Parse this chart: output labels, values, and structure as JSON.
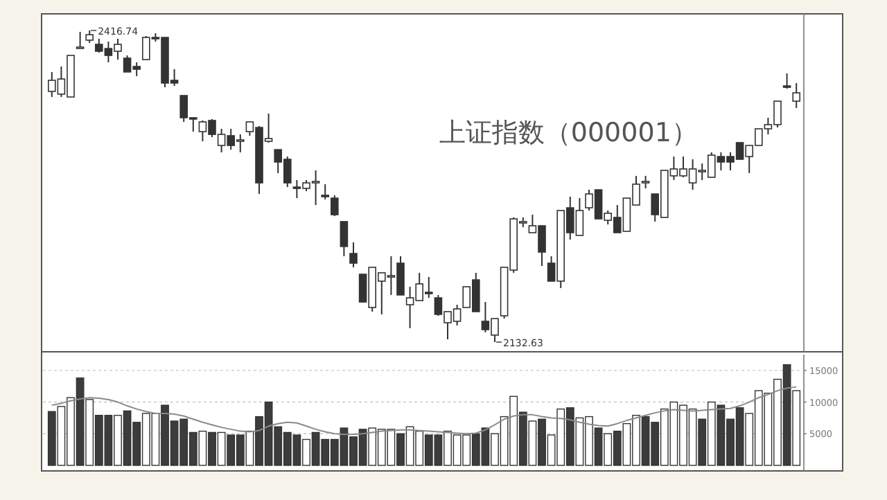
{
  "chart_data": [
    {
      "type": "candlestick",
      "annotations": [
        "上证指数（000001）",
        "2416.74",
        "2132.63"
      ],
      "categories": [
        null,
        null,
        null,
        null,
        null,
        null,
        null,
        null,
        null,
        null,
        null,
        null,
        null,
        null,
        null,
        null,
        null,
        null,
        null,
        null,
        null,
        null,
        null,
        null,
        null,
        null,
        null,
        null,
        null,
        null,
        null,
        null,
        null,
        null,
        null,
        null,
        null,
        null,
        null,
        null,
        null,
        null,
        null,
        null,
        null,
        null,
        null,
        null,
        null,
        null,
        null,
        null,
        null,
        null,
        null,
        null,
        null,
        null,
        null,
        null,
        null,
        null,
        null,
        null,
        null,
        null,
        null,
        null,
        null,
        null,
        null,
        null,
        null,
        null,
        null,
        null,
        null,
        null,
        null,
        null
      ],
      "ohlc": [
        [
          2361.2,
          2378.9,
          2356.1,
          2371.3
        ],
        [
          2358.7,
          2383.9,
          2356.1,
          2372.5
        ],
        [
          2356.1,
          2394.0,
          2356.1,
          2394.0
        ],
        [
          2400.3,
          2415.5,
          2400.3,
          2401.6
        ],
        [
          2407.9,
          2416.74,
          2405.4,
          2412.9
        ],
        [
          2404.1,
          2409.2,
          2396.5,
          2397.8
        ],
        [
          2400.3,
          2406.6,
          2387.7,
          2394.0
        ],
        [
          2397.8,
          2409.2,
          2390.2,
          2404.1
        ],
        [
          2391.5,
          2394.0,
          2378.9,
          2378.9
        ],
        [
          2383.9,
          2387.7,
          2375.1,
          2381.4
        ],
        [
          2390.2,
          2411.7,
          2390.2,
          2410.4
        ],
        [
          2410.4,
          2414.2,
          2406.6,
          2409.2
        ],
        [
          2410.4,
          2410.4,
          2365.0,
          2368.8
        ],
        [
          2371.3,
          2381.4,
          2366.2,
          2368.8
        ],
        [
          2357.4,
          2357.4,
          2333.4,
          2337.2
        ],
        [
          2337.2,
          2337.2,
          2324.5,
          2335.9
        ],
        [
          2324.5,
          2334.7,
          2315.7,
          2333.4
        ],
        [
          2334.7,
          2335.9,
          2319.5,
          2322.0
        ],
        [
          2311.9,
          2327.1,
          2305.6,
          2322.0
        ],
        [
          2320.8,
          2327.1,
          2308.1,
          2311.9
        ],
        [
          2315.7,
          2322.0,
          2305.6,
          2317.0
        ],
        [
          2324.5,
          2333.4,
          2320.8,
          2333.4
        ],
        [
          2328.3,
          2329.6,
          2267.7,
          2277.8
        ],
        [
          2315.7,
          2341.0,
          2314.5,
          2318.2
        ],
        [
          2308.1,
          2308.1,
          2286.7,
          2296.8
        ],
        [
          2299.3,
          2301.8,
          2274.0,
          2277.8
        ],
        [
          2274.0,
          2280.4,
          2263.9,
          2272.8
        ],
        [
          2272.8,
          2280.4,
          2270.3,
          2277.8
        ],
        [
          2277.8,
          2289.2,
          2257.6,
          2279.1
        ],
        [
          2266.5,
          2276.6,
          2262.7,
          2265.2
        ],
        [
          2263.9,
          2266.5,
          2247.5,
          2248.8
        ],
        [
          2242.5,
          2242.5,
          2210.9,
          2219.8
        ],
        [
          2213.4,
          2223.5,
          2200.8,
          2204.6
        ],
        [
          2194.5,
          2194.5,
          2169.2,
          2169.2
        ],
        [
          2164.2,
          2200.8,
          2160.4,
          2200.8
        ],
        [
          2188.2,
          2195.8,
          2157.9,
          2195.8
        ],
        [
          2192.0,
          2210.9,
          2175.6,
          2193.2
        ],
        [
          2204.6,
          2210.9,
          2175.6,
          2175.6
        ],
        [
          2166.7,
          2183.1,
          2145.3,
          2173.0
        ],
        [
          2170.5,
          2195.8,
          2170.5,
          2185.7
        ],
        [
          2178.1,
          2192.0,
          2173.0,
          2176.8
        ],
        [
          2173.0,
          2175.6,
          2156.6,
          2157.9
        ],
        [
          2150.3,
          2160.4,
          2135.2,
          2160.4
        ],
        [
          2151.6,
          2166.7,
          2147.8,
          2162.9
        ],
        [
          2164.2,
          2183.1,
          2164.2,
          2183.1
        ],
        [
          2189.4,
          2195.8,
          2160.4,
          2160.4
        ],
        [
          2151.6,
          2169.2,
          2141.5,
          2144.0
        ],
        [
          2139.0,
          2154.1,
          2132.63,
          2154.1
        ],
        [
          2156.6,
          2200.8,
          2154.1,
          2200.8
        ],
        [
          2198.3,
          2246.3,
          2195.8,
          2245.0
        ],
        [
          2241.2,
          2246.3,
          2237.4,
          2242.5
        ],
        [
          2232.4,
          2248.8,
          2232.4,
          2238.7
        ],
        [
          2238.7,
          2238.7,
          2202.1,
          2214.7
        ],
        [
          2204.6,
          2210.9,
          2188.2,
          2188.2
        ],
        [
          2188.2,
          2252.6,
          2181.9,
          2252.6
        ],
        [
          2255.1,
          2265.2,
          2226.1,
          2232.4
        ],
        [
          2229.9,
          2263.9,
          2229.9,
          2252.6
        ],
        [
          2255.1,
          2271.5,
          2252.6,
          2267.7
        ],
        [
          2271.5,
          2271.5,
          2245.0,
          2245.0
        ],
        [
          2243.7,
          2252.6,
          2239.9,
          2250.1
        ],
        [
          2246.3,
          2257.6,
          2232.4,
          2232.4
        ],
        [
          2233.6,
          2263.9,
          2233.6,
          2263.9
        ],
        [
          2257.6,
          2284.2,
          2257.6,
          2276.6
        ],
        [
          2277.8,
          2284.2,
          2272.8,
          2279.1
        ],
        [
          2267.7,
          2267.7,
          2242.5,
          2248.8
        ],
        [
          2246.3,
          2289.2,
          2246.3,
          2289.2
        ],
        [
          2284.2,
          2301.8,
          2280.4,
          2290.5
        ],
        [
          2284.2,
          2301.8,
          2282.9,
          2290.5
        ],
        [
          2277.8,
          2299.3,
          2271.5,
          2290.5
        ],
        [
          2287.9,
          2295.5,
          2280.4,
          2289.2
        ],
        [
          2282.9,
          2305.6,
          2282.9,
          2303.1
        ],
        [
          2301.8,
          2305.6,
          2289.2,
          2296.8
        ],
        [
          2301.8,
          2305.6,
          2289.2,
          2296.8
        ],
        [
          2314.5,
          2314.5,
          2299.3,
          2299.3
        ],
        [
          2301.8,
          2311.9,
          2286.7,
          2311.9
        ],
        [
          2311.9,
          2327.1,
          2311.9,
          2327.1
        ],
        [
          2327.1,
          2337.2,
          2322.0,
          2330.9
        ],
        [
          2330.9,
          2352.3,
          2328.3,
          2352.3
        ],
        [
          2366.2,
          2377.6,
          2363.7,
          2365.0
        ],
        [
          2352.3,
          2368.8,
          2346.0,
          2359.9
        ]
      ]
    },
    {
      "type": "bar",
      "ylim": [
        0,
        17500
      ],
      "yticks": [
        5000,
        10000,
        15000
      ],
      "grid": "y",
      "categories": [
        null,
        null,
        null,
        null,
        null,
        null,
        null,
        null,
        null,
        null,
        null,
        null,
        null,
        null,
        null,
        null,
        null,
        null,
        null,
        null,
        null,
        null,
        null,
        null,
        null,
        null,
        null,
        null,
        null,
        null,
        null,
        null,
        null,
        null,
        null,
        null,
        null,
        null,
        null,
        null,
        null,
        null,
        null,
        null,
        null,
        null,
        null,
        null,
        null,
        null,
        null,
        null,
        null,
        null,
        null,
        null,
        null,
        null,
        null,
        null,
        null,
        null,
        null,
        null,
        null,
        null,
        null,
        null,
        null,
        null,
        null,
        null,
        null,
        null,
        null,
        null,
        null,
        null,
        null,
        null
      ],
      "series": [
        {
          "type": "bar",
          "values": [
            8500,
            9300,
            10700,
            13800,
            10400,
            7900,
            7900,
            7900,
            8600,
            6800,
            8200,
            8200,
            9500,
            7000,
            7300,
            5200,
            5400,
            5200,
            5200,
            4800,
            4800,
            5400,
            7700,
            10000,
            6100,
            5200,
            4800,
            4100,
            5200,
            4100,
            4100,
            5900,
            4500,
            5700,
            5900,
            5700,
            5700,
            5000,
            6100,
            5400,
            4800,
            4800,
            5400,
            4800,
            4800,
            5000,
            5900,
            5000,
            7700,
            10900,
            8400,
            7000,
            7300,
            4800,
            8900,
            9100,
            7500,
            7700,
            5900,
            5000,
            5400,
            6600,
            7900,
            7700,
            6800,
            8900,
            10000,
            9500,
            8900,
            7300,
            10000,
            9500,
            7300,
            9100,
            8200,
            11800,
            11400,
            13600,
            15900,
            11800
          ],
          "colors": [
            "#3c3c3c",
            "#ffffff",
            "#ffffff",
            "#3c3c3c",
            "#ffffff",
            "#3c3c3c",
            "#3c3c3c",
            "#ffffff",
            "#3c3c3c",
            "#3c3c3c",
            "#ffffff",
            "#ffffff",
            "#3c3c3c",
            "#3c3c3c",
            "#3c3c3c",
            "#3c3c3c",
            "#ffffff",
            "#3c3c3c",
            "#ffffff",
            "#3c3c3c",
            "#3c3c3c",
            "#ffffff",
            "#3c3c3c",
            "#3c3c3c",
            "#3c3c3c",
            "#3c3c3c",
            "#3c3c3c",
            "#ffffff",
            "#3c3c3c",
            "#3c3c3c",
            "#3c3c3c",
            "#3c3c3c",
            "#3c3c3c",
            "#3c3c3c",
            "#ffffff",
            "#ffffff",
            "#ffffff",
            "#3c3c3c",
            "#ffffff",
            "#ffffff",
            "#3c3c3c",
            "#3c3c3c",
            "#ffffff",
            "#ffffff",
            "#ffffff",
            "#3c3c3c",
            "#3c3c3c",
            "#ffffff",
            "#ffffff",
            "#ffffff",
            "#3c3c3c",
            "#ffffff",
            "#3c3c3c",
            "#ffffff",
            "#ffffff",
            "#3c3c3c",
            "#ffffff",
            "#ffffff",
            "#3c3c3c",
            "#ffffff",
            "#3c3c3c",
            "#ffffff",
            "#ffffff",
            "#3c3c3c",
            "#3c3c3c",
            "#ffffff",
            "#ffffff",
            "#ffffff",
            "#ffffff",
            "#3c3c3c",
            "#ffffff",
            "#3c3c3c",
            "#3c3c3c",
            "#3c3c3c",
            "#ffffff",
            "#ffffff",
            "#ffffff",
            "#ffffff",
            "#3c3c3c",
            "#ffffff"
          ]
        },
        {
          "type": "line",
          "color": "#8a8a8a",
          "values": [
            9500,
            9800,
            10200,
            10500,
            10700,
            10600,
            10400,
            10000,
            9400,
            8900,
            8500,
            8200,
            8200,
            8100,
            7800,
            7300,
            6800,
            6400,
            6000,
            5700,
            5400,
            5300,
            5500,
            6200,
            6600,
            6800,
            6700,
            6200,
            5700,
            5300,
            5000,
            4900,
            4900,
            5000,
            5200,
            5400,
            5500,
            5600,
            5600,
            5500,
            5400,
            5300,
            5200,
            5100,
            5000,
            5100,
            5600,
            6400,
            7300,
            7800,
            8000,
            8000,
            7700,
            7500,
            7400,
            7200,
            6800,
            6500,
            6300,
            6200,
            6600,
            7100,
            7500,
            7900,
            8300,
            8600,
            8800,
            8700,
            8600,
            8700,
            8800,
            8900,
            9000,
            9400,
            10000,
            10700,
            11200,
            11800,
            12200,
            12400
          ]
        }
      ]
    }
  ]
}
